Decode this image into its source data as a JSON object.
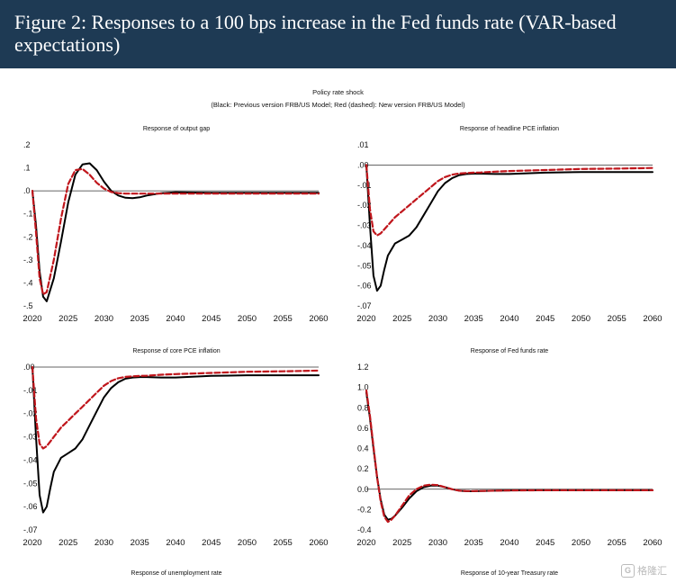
{
  "figure": {
    "title": "Figure 2: Responses to a 100 bps increase in the Fed funds rate (VAR-based expectations)",
    "subtitle": "Policy rate shock",
    "legend_note": "(Black: Previous version FRB/US Model; Red (dashed): New version FRB/US Model)",
    "bottom_titles": [
      "Response of unemployment rate",
      "Response of 10-year Treasury rate"
    ]
  },
  "colors": {
    "banner": "#1e3a54",
    "previous": "#000000",
    "new": "#c0161c"
  },
  "watermark": {
    "logo": "G",
    "text": "格隆汇"
  },
  "chart_data": [
    {
      "type": "line",
      "title": "Response of output gap",
      "xlim": [
        2020,
        2060
      ],
      "ylim": [
        -0.5,
        0.2
      ],
      "x_ticks": [
        "2020",
        "2025",
        "2030",
        "2035",
        "2040",
        "2045",
        "2050",
        "2055",
        "2060"
      ],
      "y_ticks": [
        ".2",
        ".1",
        ".0",
        "-.1",
        "-.2",
        "-.3",
        "-.4",
        "-.5"
      ],
      "y_tick_values": [
        0.2,
        0.1,
        0.0,
        -0.1,
        -0.2,
        -0.3,
        -0.4,
        -0.5
      ],
      "series": [
        {
          "name": "Previous version FRB/US Model",
          "color": "#000000",
          "dash": "solid",
          "x": [
            2020,
            2020.5,
            2021,
            2021.5,
            2022,
            2023,
            2024,
            2025,
            2026,
            2027,
            2028,
            2029,
            2030,
            2031,
            2032,
            2033,
            2034,
            2035,
            2036,
            2038,
            2040,
            2045,
            2050,
            2055,
            2060
          ],
          "y": [
            0,
            -0.15,
            -0.35,
            -0.46,
            -0.48,
            -0.38,
            -0.22,
            -0.05,
            0.07,
            0.115,
            0.12,
            0.09,
            0.04,
            0.0,
            -0.02,
            -0.03,
            -0.032,
            -0.028,
            -0.02,
            -0.01,
            -0.006,
            -0.008,
            -0.008,
            -0.008,
            -0.008
          ]
        },
        {
          "name": "New version FRB/US Model",
          "color": "#c0161c",
          "dash": "dashed",
          "x": [
            2020,
            2020.5,
            2021,
            2021.5,
            2022,
            2023,
            2024,
            2025,
            2026,
            2027,
            2028,
            2029,
            2030,
            2031,
            2032,
            2033,
            2034,
            2035,
            2036,
            2038,
            2040,
            2045,
            2050,
            2055,
            2060
          ],
          "y": [
            0,
            -0.18,
            -0.38,
            -0.45,
            -0.44,
            -0.3,
            -0.12,
            0.03,
            0.09,
            0.095,
            0.07,
            0.035,
            0.01,
            -0.005,
            -0.01,
            -0.012,
            -0.012,
            -0.012,
            -0.012,
            -0.012,
            -0.012,
            -0.012,
            -0.012,
            -0.012,
            -0.012
          ]
        }
      ]
    },
    {
      "type": "line",
      "title": "Response of headline PCE inflation",
      "xlim": [
        2020,
        2060
      ],
      "ylim": [
        -0.07,
        0.01
      ],
      "x_ticks": [
        "2020",
        "2025",
        "2030",
        "2035",
        "2040",
        "2045",
        "2050",
        "2055",
        "2060"
      ],
      "y_ticks": [
        ".01",
        ".00",
        "-.01",
        "-.02",
        "-.03",
        "-.04",
        "-.05",
        "-.06",
        "-.07"
      ],
      "y_tick_values": [
        0.01,
        0.0,
        -0.01,
        -0.02,
        -0.03,
        -0.04,
        -0.05,
        -0.06,
        -0.07
      ],
      "series": [
        {
          "name": "Previous version FRB/US Model",
          "color": "#000000",
          "dash": "solid",
          "x": [
            2020,
            2020.5,
            2021,
            2021.5,
            2022,
            2022.5,
            2023,
            2024,
            2025,
            2026,
            2027,
            2028,
            2029,
            2030,
            2031,
            2032,
            2033,
            2034,
            2035,
            2036,
            2038,
            2040,
            2045,
            2050,
            2055,
            2060
          ],
          "y": [
            0,
            -0.03,
            -0.055,
            -0.0625,
            -0.06,
            -0.052,
            -0.045,
            -0.039,
            -0.037,
            -0.035,
            -0.031,
            -0.025,
            -0.019,
            -0.013,
            -0.009,
            -0.0065,
            -0.005,
            -0.0045,
            -0.0043,
            -0.0043,
            -0.0045,
            -0.0045,
            -0.0038,
            -0.0035,
            -0.0035,
            -0.0035
          ]
        },
        {
          "name": "New version FRB/US Model",
          "color": "#c0161c",
          "dash": "dashed",
          "x": [
            2020,
            2020.5,
            2021,
            2021.5,
            2022,
            2023,
            2024,
            2025,
            2026,
            2027,
            2028,
            2029,
            2030,
            2031,
            2032,
            2033,
            2034,
            2035,
            2036,
            2038,
            2040,
            2045,
            2050,
            2055,
            2060
          ],
          "y": [
            0,
            -0.022,
            -0.033,
            -0.035,
            -0.034,
            -0.03,
            -0.026,
            -0.023,
            -0.02,
            -0.017,
            -0.014,
            -0.011,
            -0.008,
            -0.006,
            -0.0048,
            -0.0042,
            -0.004,
            -0.0038,
            -0.0037,
            -0.0033,
            -0.003,
            -0.0025,
            -0.002,
            -0.0018,
            -0.0015
          ]
        }
      ]
    },
    {
      "type": "line",
      "title": "Response of core PCE inflation",
      "xlim": [
        2020,
        2060
      ],
      "ylim": [
        -0.07,
        0.0
      ],
      "x_ticks": [
        "2020",
        "2025",
        "2030",
        "2035",
        "2040",
        "2045",
        "2050",
        "2055",
        "2060"
      ],
      "y_ticks": [
        ".00",
        "-.01",
        "-.02",
        "-.03",
        "-.04",
        "-.05",
        "-.06",
        "-.07"
      ],
      "y_tick_values": [
        0.0,
        -0.01,
        -0.02,
        -0.03,
        -0.04,
        -0.05,
        -0.06,
        -0.07
      ],
      "series": [
        {
          "name": "Previous version FRB/US Model",
          "color": "#000000",
          "dash": "solid",
          "x": [
            2020,
            2020.5,
            2021,
            2021.5,
            2022,
            2022.5,
            2023,
            2024,
            2025,
            2026,
            2027,
            2028,
            2029,
            2030,
            2031,
            2032,
            2033,
            2034,
            2035,
            2036,
            2038,
            2040,
            2045,
            2050,
            2055,
            2060
          ],
          "y": [
            0,
            -0.03,
            -0.055,
            -0.0625,
            -0.06,
            -0.052,
            -0.045,
            -0.039,
            -0.037,
            -0.035,
            -0.031,
            -0.025,
            -0.019,
            -0.013,
            -0.009,
            -0.0065,
            -0.005,
            -0.0045,
            -0.0043,
            -0.0043,
            -0.0045,
            -0.0045,
            -0.0038,
            -0.0035,
            -0.0035,
            -0.0035
          ]
        },
        {
          "name": "New version FRB/US Model",
          "color": "#c0161c",
          "dash": "dashed",
          "x": [
            2020,
            2020.5,
            2021,
            2021.5,
            2022,
            2023,
            2024,
            2025,
            2026,
            2027,
            2028,
            2029,
            2030,
            2031,
            2032,
            2033,
            2034,
            2035,
            2036,
            2038,
            2040,
            2045,
            2050,
            2055,
            2060
          ],
          "y": [
            0,
            -0.022,
            -0.033,
            -0.035,
            -0.034,
            -0.03,
            -0.026,
            -0.023,
            -0.02,
            -0.017,
            -0.014,
            -0.011,
            -0.008,
            -0.006,
            -0.0048,
            -0.0042,
            -0.004,
            -0.0038,
            -0.0037,
            -0.0033,
            -0.003,
            -0.0025,
            -0.002,
            -0.0018,
            -0.0015
          ]
        }
      ]
    },
    {
      "type": "line",
      "title": "Response of Fed funds rate",
      "xlim": [
        2020,
        2060
      ],
      "ylim": [
        -0.4,
        1.2
      ],
      "x_ticks": [
        "2020",
        "2025",
        "2030",
        "2035",
        "2040",
        "2045",
        "2050",
        "2055",
        "2060"
      ],
      "y_ticks": [
        "1.2",
        "1.0",
        "0.8",
        "0.6",
        "0.4",
        "0.2",
        "0.0",
        "-0.2",
        "-0.4"
      ],
      "y_tick_values": [
        1.2,
        1.0,
        0.8,
        0.6,
        0.4,
        0.2,
        0.0,
        -0.2,
        -0.4
      ],
      "series": [
        {
          "name": "Previous version FRB/US Model",
          "color": "#000000",
          "dash": "solid",
          "x": [
            2020,
            2020.5,
            2021,
            2021.5,
            2022,
            2022.5,
            2023,
            2023.5,
            2024,
            2025,
            2026,
            2027,
            2028,
            2029,
            2030,
            2031,
            2032,
            2033,
            2034,
            2035,
            2036,
            2038,
            2040,
            2045,
            2050,
            2055,
            2060
          ],
          "y": [
            0.95,
            0.7,
            0.4,
            0.12,
            -0.1,
            -0.25,
            -0.3,
            -0.29,
            -0.26,
            -0.18,
            -0.09,
            -0.02,
            0.02,
            0.035,
            0.035,
            0.02,
            0.0,
            -0.015,
            -0.02,
            -0.02,
            -0.018,
            -0.015,
            -0.012,
            -0.01,
            -0.01,
            -0.01,
            -0.01
          ]
        },
        {
          "name": "New version FRB/US Model",
          "color": "#c0161c",
          "dash": "dashed",
          "x": [
            2020,
            2020.5,
            2021,
            2021.5,
            2022,
            2022.5,
            2023,
            2023.5,
            2024,
            2025,
            2026,
            2027,
            2028,
            2029,
            2030,
            2031,
            2032,
            2033,
            2034,
            2035,
            2036,
            2038,
            2040,
            2045,
            2050,
            2055,
            2060
          ],
          "y": [
            0.97,
            0.72,
            0.42,
            0.12,
            -0.12,
            -0.27,
            -0.32,
            -0.3,
            -0.26,
            -0.16,
            -0.06,
            0.0,
            0.035,
            0.045,
            0.04,
            0.02,
            0.0,
            -0.015,
            -0.018,
            -0.018,
            -0.017,
            -0.015,
            -0.012,
            -0.01,
            -0.01,
            -0.01,
            -0.01
          ]
        }
      ]
    }
  ]
}
